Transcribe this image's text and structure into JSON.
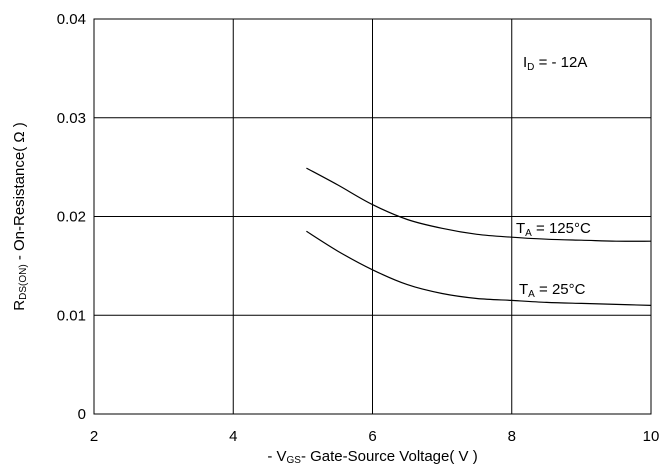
{
  "chart_data": {
    "type": "line",
    "xlabel": {
      "prefix": "- V",
      "sub": "GS",
      "rest": "- Gate-Source Voltage( V )"
    },
    "ylabel": {
      "prefix": "R",
      "sub": "DS(ON)",
      "rest": " - On-Resistance( Ω )"
    },
    "xlim": [
      2,
      10
    ],
    "ylim": [
      0,
      0.04
    ],
    "xticks": [
      "2",
      "4",
      "6",
      "8",
      "10"
    ],
    "yticks": [
      "0",
      "0.01",
      "0.02",
      "0.03",
      "0.04"
    ],
    "grid": true,
    "annotations": [
      {
        "base": "I",
        "sub": "D",
        "rest": " = - 12A"
      }
    ],
    "series": [
      {
        "name": "T_A = 125°C",
        "label": {
          "base": "T",
          "sub": "A",
          "rest": " = 125°C"
        },
        "x": [
          5.05,
          5.5,
          6.0,
          6.5,
          7.0,
          7.5,
          8.0,
          8.5,
          9.0,
          9.5,
          10.0
        ],
        "y": [
          0.0249,
          0.0232,
          0.0212,
          0.0197,
          0.0188,
          0.0182,
          0.0179,
          0.0177,
          0.0176,
          0.0175,
          0.0175
        ]
      },
      {
        "name": "T_A = 25°C",
        "label": {
          "base": "T",
          "sub": "A",
          "rest": " = 25°C"
        },
        "x": [
          5.05,
          5.5,
          6.0,
          6.5,
          7.0,
          7.5,
          8.0,
          8.5,
          9.0,
          9.5,
          10.0
        ],
        "y": [
          0.0185,
          0.0165,
          0.0146,
          0.0131,
          0.0122,
          0.0117,
          0.0115,
          0.0113,
          0.0112,
          0.0111,
          0.011
        ]
      }
    ]
  }
}
